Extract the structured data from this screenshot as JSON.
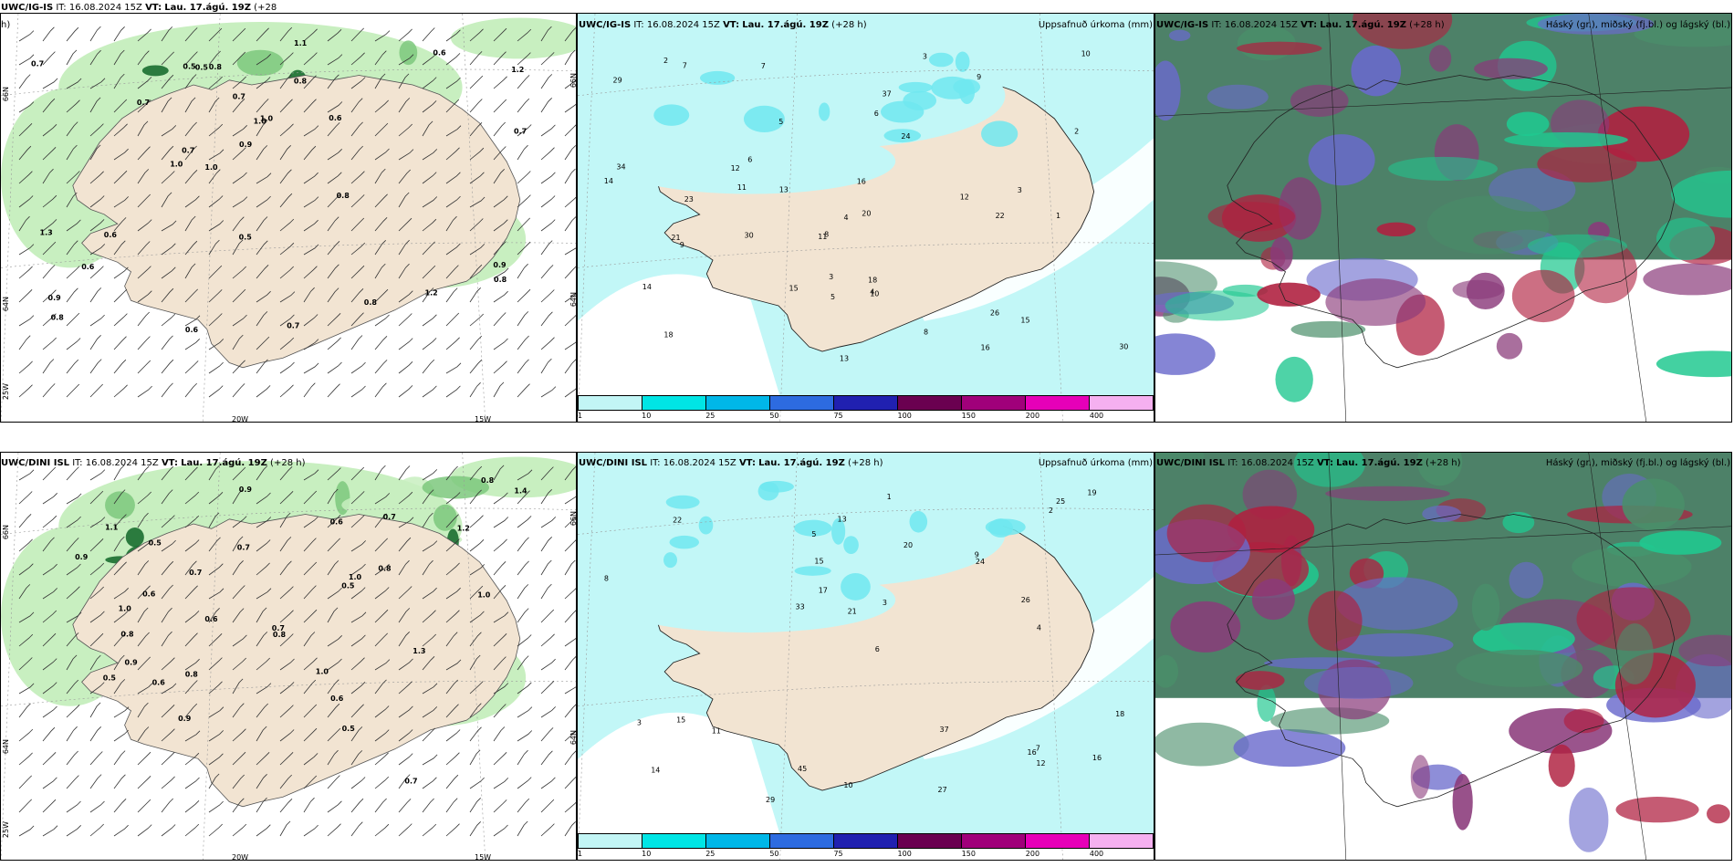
{
  "top_left": {
    "header_model": "UWC/IG-IS",
    "header_it": "IT: 16.08.2024 15Z",
    "header_vt_label": "VT:",
    "header_vt": "Lau. 17.ágú. 19Z",
    "header_plus": "(+28",
    "header_wrap": "h)",
    "lat_labels": [
      "66N",
      "64N",
      "25W"
    ],
    "lon_labels": [
      "20W",
      "15W"
    ],
    "values": [
      "0.5",
      "0.6",
      "0.8",
      "1.0",
      "1.2",
      "0.7",
      "0.9",
      "1.0",
      "0.6",
      "0.7",
      "0.8",
      "1.1",
      "0.9",
      "0.8",
      "1.2",
      "0.7",
      "0.6",
      "1.0",
      "0.8",
      "0.9",
      "0.5",
      "0.7",
      "1.3",
      "0.7",
      "0.8",
      "0.6",
      "0.5",
      "1.0",
      "0.8",
      "0.7",
      "0.6"
    ]
  },
  "top_mid": {
    "header_model": "UWC/IG-IS",
    "header_it": "IT: 16.08.2024 15Z",
    "header_vt_label": "VT:",
    "header_vt": "Lau. 17.ágú. 19Z",
    "header_plus": "(+28 h)",
    "header_right": "Uppsafnuð úrkoma (mm)",
    "lat_labels": [
      "66N",
      "64N"
    ],
    "values": [
      "30",
      "9",
      "2",
      "3",
      "34",
      "26",
      "13",
      "18",
      "24",
      "20",
      "22",
      "16",
      "8",
      "30",
      "37",
      "13",
      "14",
      "5",
      "10",
      "6",
      "4",
      "7",
      "3",
      "12",
      "16",
      "15",
      "29",
      "11",
      "9",
      "2",
      "3",
      "4",
      "1",
      "5",
      "6",
      "8",
      "10",
      "14",
      "12",
      "15",
      "18",
      "11",
      "7",
      "23",
      "21"
    ]
  },
  "top_right": {
    "header_model": "UWC/IG-IS",
    "header_it": "IT: 16.08.2024 15Z",
    "header_vt_label": "VT:",
    "header_vt": "Lau. 17.ágú. 19Z",
    "header_plus": "(+28 h)",
    "header_right": "Háský (gr.), miðský (fj.bl.) og lágský (bl.)"
  },
  "bot_left": {
    "header_model": "UWC/DINI ISL",
    "header_it": "IT: 16.08.2024 15Z",
    "header_vt_label": "VT:",
    "header_vt": "Lau. 17.ágú. 19Z",
    "header_plus": "(+28 h)",
    "lat_labels": [
      "66N",
      "64N",
      "25W"
    ],
    "lon_labels": [
      "20W",
      "15W"
    ],
    "values": [
      "0.6",
      "0.8",
      "0.5",
      "0.9",
      "0.7",
      "1.0",
      "1.1",
      "0.8",
      "0.6",
      "1.2",
      "0.9",
      "0.7",
      "1.0",
      "0.5",
      "0.8",
      "0.6",
      "0.7",
      "1.3",
      "0.9",
      "1.0",
      "0.6",
      "0.8",
      "0.5",
      "0.7",
      "1.4",
      "0.9",
      "0.6",
      "1.0",
      "0.8",
      "0.7",
      "0.5"
    ]
  },
  "bot_mid": {
    "header_model": "UWC/DINI ISL",
    "header_it": "IT: 16.08.2024 15Z",
    "header_vt_label": "VT:",
    "header_vt": "Lau. 17.ágú. 19Z",
    "header_plus": "(+28 h)",
    "header_right": "Uppsafnuð úrkoma (mm)",
    "lat_labels": [
      "66N",
      "64N"
    ],
    "values": [
      "7",
      "3",
      "16",
      "20",
      "15",
      "33",
      "37",
      "18",
      "26",
      "45",
      "19",
      "13",
      "14",
      "29",
      "27",
      "22",
      "10",
      "24",
      "12",
      "9",
      "8",
      "6",
      "5",
      "4",
      "3",
      "2",
      "1",
      "11",
      "17",
      "21",
      "25",
      "15",
      "16"
    ]
  },
  "bot_right": {
    "header_model": "UWC/DINI ISL",
    "header_it": "IT: 16.08.2024 15Z",
    "header_vt_label": "VT:",
    "header_vt": "Lau. 17.ágú. 19Z",
    "header_plus": "(+28 h)",
    "header_right": "Háský (gr.), miðský (fj.bl.) og lágský (bl.)"
  },
  "colorbar": {
    "ticks": [
      "1",
      "10",
      "25",
      "50",
      "75",
      "100",
      "150",
      "200",
      "400"
    ],
    "colors": [
      "#c2f5f5",
      "#00e5e5",
      "#00b7e8",
      "#2d6be0",
      "#2020b0",
      "#6a0050",
      "#a0007a",
      "#e600b8",
      "#f5b0f0"
    ]
  },
  "colors": {
    "land": "#f2e4d2",
    "green_light": "#c8efc0",
    "green_mid": "#7cc87c",
    "green_dark": "#1a6e30",
    "cyan_light": "#c2f7f7",
    "cyan_mid": "#70e8f0",
    "cloud_high": "#2e6b4e",
    "cloud_mid": "#6a6acc",
    "cloud_low": "#b02040",
    "cloud_teal": "#20c890"
  }
}
